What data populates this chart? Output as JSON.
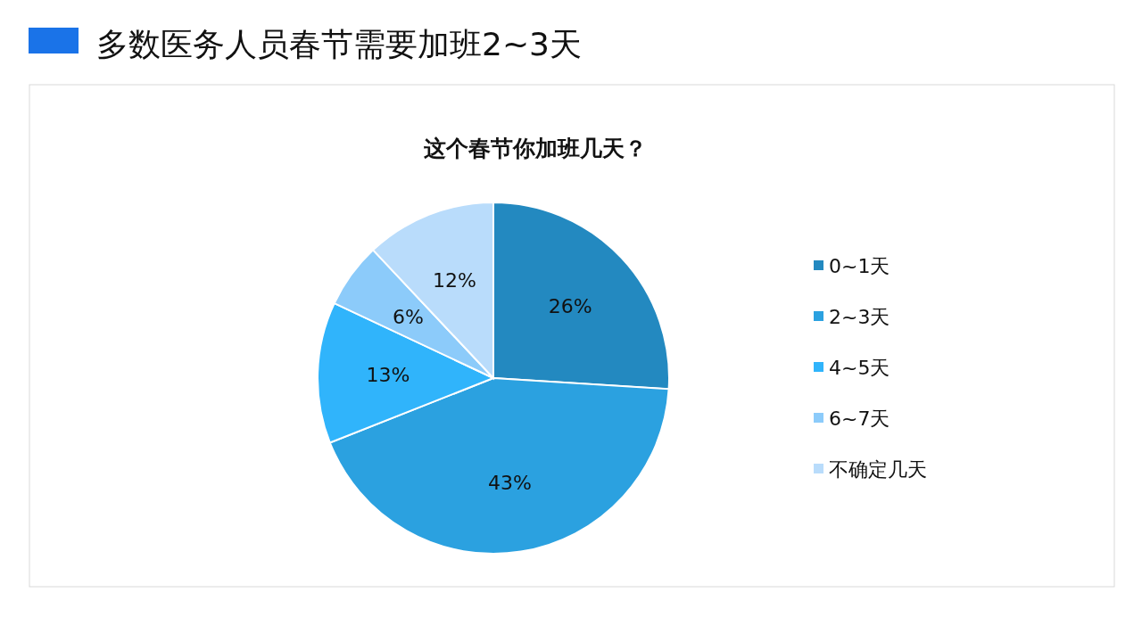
{
  "chart_data": {
    "type": "pie",
    "title": "多数医务人员春节需要加班2~3天",
    "subtitle": "这个春节你加班几天？",
    "categories": [
      "0~1天",
      "2~3天",
      "4~5天",
      "6~7天",
      "不确定几天"
    ],
    "values": [
      26,
      43,
      13,
      6,
      12
    ],
    "value_labels": [
      "26%",
      "43%",
      "13%",
      "6%",
      "12%"
    ],
    "colors": [
      "#2389c0",
      "#2ba1e0",
      "#30b4fb",
      "#8ccbfa",
      "#b9dcfb"
    ],
    "legend": "right"
  }
}
